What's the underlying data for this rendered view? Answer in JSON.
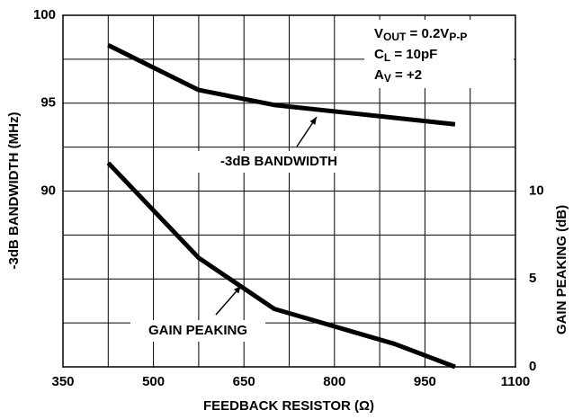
{
  "chart_data": {
    "type": "line",
    "xlabel": "FEEDBACK RESISTOR (Ω)",
    "ylabel": "-3dB BANDWIDTH (MHz)",
    "y2label": "GAIN PEAKING (dB)",
    "xlim": [
      350,
      1100
    ],
    "xticks": [
      350,
      500,
      650,
      800,
      950,
      1100
    ],
    "ylim": [
      80,
      100
    ],
    "yticks": [
      90,
      95,
      100
    ],
    "y2lim": [
      0,
      20
    ],
    "y2ticks": [
      0,
      5,
      10
    ],
    "xgrid": [
      425,
      500,
      575,
      650,
      725,
      800,
      875,
      950,
      1025
    ],
    "ygrid": [
      82.5,
      85,
      87.5,
      90,
      92.5,
      95,
      97.5
    ],
    "grid": true,
    "conditions": [
      [
        "V",
        "OUT",
        " = 0.2V",
        "P-P"
      ],
      [
        "C",
        "L",
        " = 10pF"
      ],
      [
        "A",
        "V",
        " = +2"
      ]
    ],
    "series": [
      {
        "name": "-3dB BANDWIDTH",
        "color": "#000000",
        "x": [
          425,
          575,
          700,
          1000
        ],
        "values": [
          98.3,
          95.75,
          94.9,
          93.8
        ]
      },
      {
        "name": "GAIN PEAKING",
        "color": "#000000",
        "axis": "y2",
        "x": [
          425,
          575,
          700,
          900,
          1000
        ],
        "values": [
          11.6,
          6.2,
          3.3,
          1.3,
          0
        ]
      }
    ]
  }
}
